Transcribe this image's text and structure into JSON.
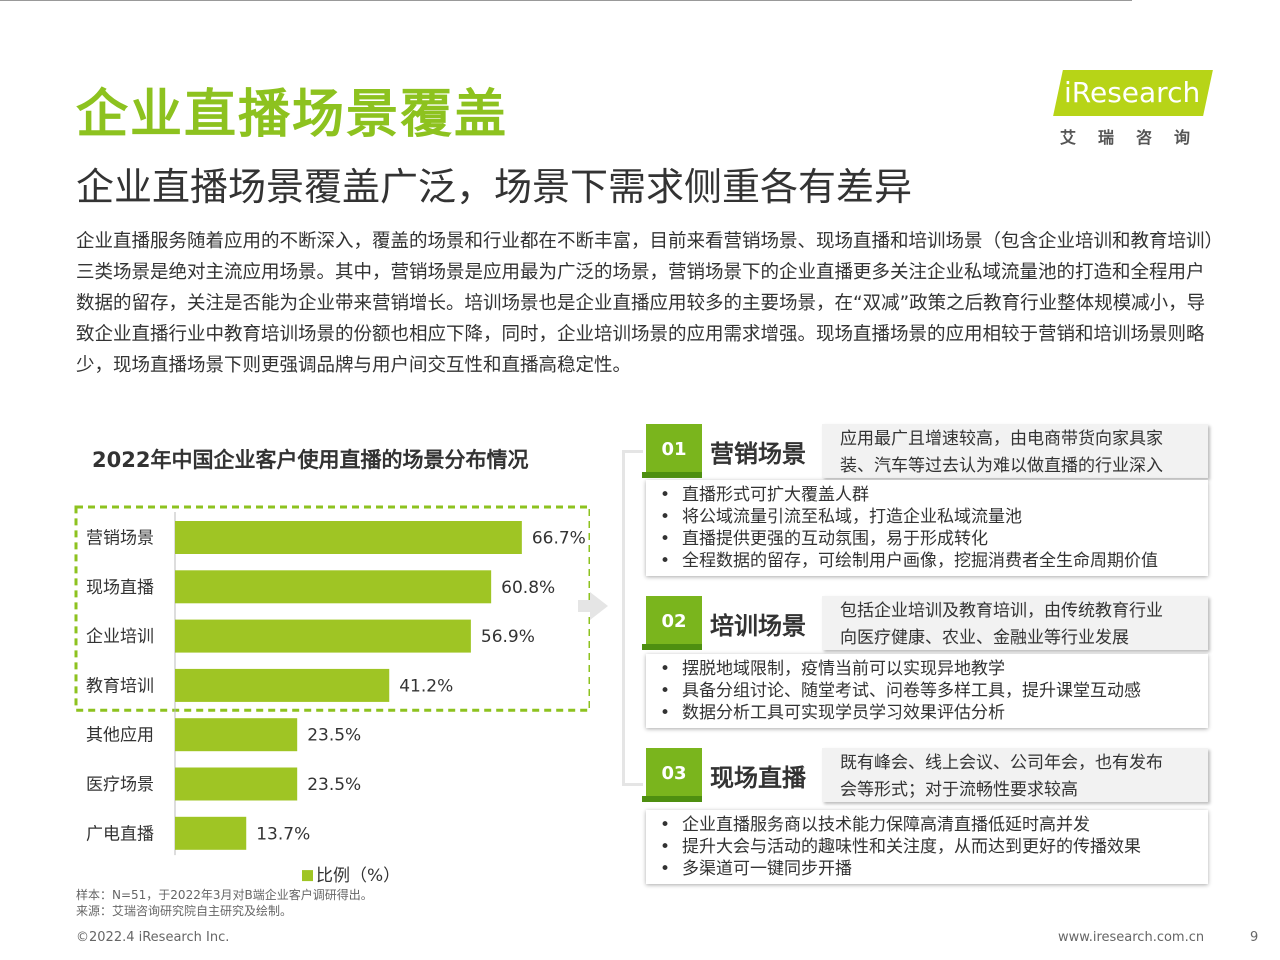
{
  "header": {
    "title": "企业直播场景覆盖",
    "subtitle": "企业直播场景覆盖广泛，场景下需求侧重各有差异",
    "intro": "企业直播服务随着应用的不断深入，覆盖的场景和行业都在不断丰富，目前来看营销场景、现场直播和培训场景（包含企业培训和教育培训）三类场景是绝对主流应用场景。其中，营销场景是应用最为广泛的场景，营销场景下的企业直播更多关注企业私域流量池的打造和全程用户数据的留存，关注是否能为企业带来营销增长。培训场景也是企业直播应用较多的主要场景，在“双减”政策之后教育行业整体规模减小，导致企业直播行业中教育培训场景的份额也相应下降，同时，企业培训场景的应用需求增强。现场直播场景的应用相较于营销和培训场景则略少，现场直播场景下则更强调品牌与用户间交互性和直播高稳定性。"
  },
  "logo": {
    "text": "iResearch",
    "cn": "艾瑞咨询"
  },
  "chart_data": {
    "type": "bar",
    "orientation": "horizontal",
    "title": "2022年中国企业客户使用直播的场景分布情况",
    "categories": [
      "营销场景",
      "现场直播",
      "企业培训",
      "教育培训",
      "其他应用",
      "医疗场景",
      "广电直播"
    ],
    "values": [
      66.7,
      60.8,
      56.9,
      41.2,
      23.5,
      23.5,
      13.7
    ],
    "value_labels": [
      "66.7%",
      "60.8%",
      "56.9%",
      "41.2%",
      "23.5%",
      "23.5%",
      "13.7%"
    ],
    "series": [
      {
        "name": "比例（%）",
        "values": [
          66.7,
          60.8,
          56.9,
          41.2,
          23.5,
          23.5,
          13.7
        ]
      }
    ],
    "legend": "bottom",
    "highlight_first_n": 4,
    "colors": {
      "bar": "#9fc524",
      "highlight_border": "#8dc21f"
    }
  },
  "notes": {
    "sample": "样本：N=51，于2022年3月对B端企业客户调研得出。",
    "source": "来源：艾瑞咨询研究院自主研究及绘制。"
  },
  "cards": [
    {
      "num": "01",
      "title": "营销场景",
      "desc1": "应用最广且增速较高，由电商带货向家具家",
      "desc2": "装、汽车等过去认为难以做直播的行业深入",
      "bullets": [
        "直播形式可扩大覆盖人群",
        "将公域流量引流至私域，打造企业私域流量池",
        "直播提供更强的互动氛围，易于形成转化",
        "全程数据的留存，可绘制用户画像，挖掘消费者全生命周期价值"
      ]
    },
    {
      "num": "02",
      "title": "培训场景",
      "desc1": "包括企业培训及教育培训，由传统教育行业",
      "desc2": "向医疗健康、农业、金融业等行业发展",
      "bullets": [
        "摆脱地域限制，疫情当前可以实现异地教学",
        "具备分组讨论、随堂考试、问卷等多样工具，提升课堂互动感",
        "数据分析工具可实现学员学习效果评估分析"
      ]
    },
    {
      "num": "03",
      "title": "现场直播",
      "desc1": "既有峰会、线上会议、公司年会，也有发布",
      "desc2": "会等形式；对于流畅性要求较高",
      "bullets": [
        "企业直播服务商以技术能力保障高清直播低延时高并发",
        "提升大会与活动的趣味性和关注度，从而达到更好的传播效果",
        "多渠道可一键同步开播"
      ]
    }
  ],
  "footer": {
    "copyright": "©2022.4 iResearch Inc.",
    "url": "www.iresearch.com.cn",
    "page": "9"
  }
}
